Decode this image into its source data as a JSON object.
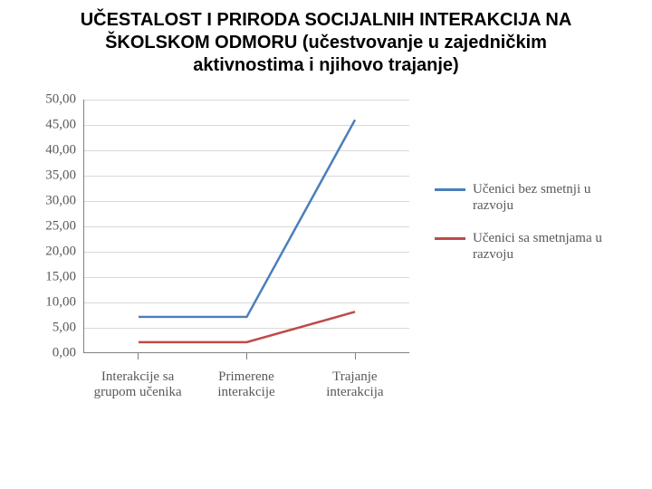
{
  "title": {
    "line1": "UČESTALOST I PRIRODA SOCIJALNIH INTERAKCIJA NA",
    "line2": "ŠKOLSKOM ODMORU (učestvovanje u zajedničkim",
    "line3": "aktivnostima i njihovo trajanje)",
    "fontsize": 20,
    "color": "#000000",
    "weight": "bold"
  },
  "chart": {
    "type": "line",
    "background_color": "#ffffff",
    "axis_color": "#808080",
    "grid_color": "#d9d9d9",
    "tick_font_family": "Times New Roman, serif",
    "tick_color": "#595959",
    "tick_fontsize": 15,
    "xlabel_fontsize": 15,
    "ylim": [
      0,
      50
    ],
    "ytick_step": 5,
    "yticks": [
      "0,00",
      "5,00",
      "10,00",
      "15,00",
      "20,00",
      "25,00",
      "30,00",
      "35,00",
      "40,00",
      "45,00",
      "50,00"
    ],
    "categories": [
      "Interakcije sa\ngrupom učenika",
      "Primerene\ninterakcije",
      "Trajanje\ninterakcija"
    ],
    "category_positions_pct": [
      16.7,
      50.0,
      83.3
    ],
    "series": [
      {
        "name": "Učenici bez smetnji u razvoju",
        "color": "#4a7ebb",
        "line_width": 2.5,
        "values": [
          7.0,
          7.0,
          46.0
        ]
      },
      {
        "name": "Učenici sa smetnjama u razvoju",
        "color": "#be4b48",
        "line_width": 2.5,
        "values": [
          2.0,
          2.0,
          8.0
        ]
      }
    ],
    "legend": {
      "position": "right",
      "fontsize": 15,
      "items": [
        {
          "label": "Učenici bez smetnji u razvoju",
          "color": "#4a7ebb"
        },
        {
          "label": "Učenici sa smetnjama u razvoju",
          "color": "#be4b48"
        }
      ]
    }
  }
}
